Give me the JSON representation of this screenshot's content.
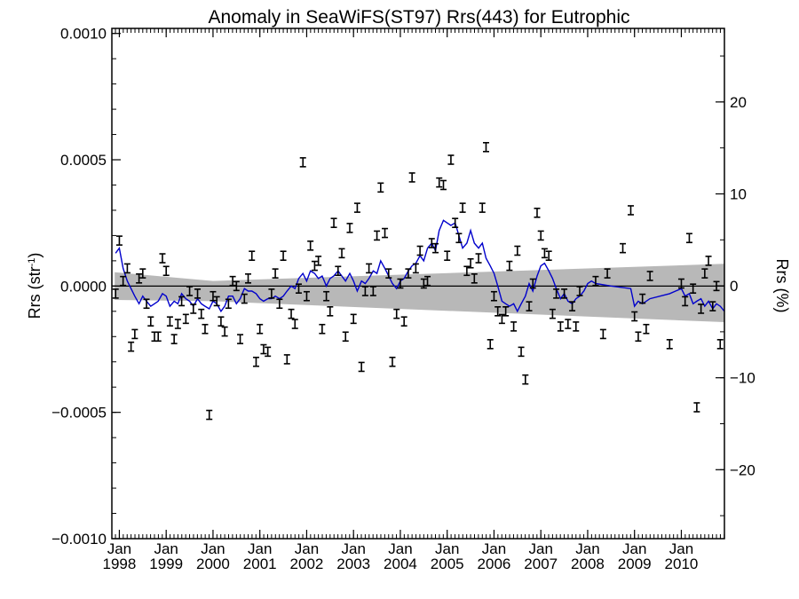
{
  "chart_data": {
    "type": "scatter",
    "title": "Anomaly in SeaWiFS(ST97) Rrs(443) for Eutrophic",
    "ylabel_left": "Rrs (str",
    "ylabel_left_sup": "-1",
    "ylabel_left_end": ")",
    "ylabel_right": "Rrs (%)",
    "xlim": [
      1997.84,
      2010.92
    ],
    "ylim_left": [
      -0.001,
      0.00102
    ],
    "ylim_right": [
      -27.5,
      28.0
    ],
    "x_ticks": [
      {
        "v": 1998,
        "l1": "Jan",
        "l2": "1998"
      },
      {
        "v": 1999,
        "l1": "Jan",
        "l2": "1999"
      },
      {
        "v": 2000,
        "l1": "Jan",
        "l2": "2000"
      },
      {
        "v": 2001,
        "l1": "Jan",
        "l2": "2001"
      },
      {
        "v": 2002,
        "l1": "Jan",
        "l2": "2002"
      },
      {
        "v": 2003,
        "l1": "Jan",
        "l2": "2003"
      },
      {
        "v": 2004,
        "l1": "Jan",
        "l2": "2004"
      },
      {
        "v": 2005,
        "l1": "Jan",
        "l2": "2005"
      },
      {
        "v": 2006,
        "l1": "Jan",
        "l2": "2006"
      },
      {
        "v": 2007,
        "l1": "Jan",
        "l2": "2007"
      },
      {
        "v": 2008,
        "l1": "Jan",
        "l2": "2008"
      },
      {
        "v": 2009,
        "l1": "Jan",
        "l2": "2009"
      },
      {
        "v": 2010,
        "l1": "Jan",
        "l2": "2010"
      }
    ],
    "y_ticks_left": [
      {
        "v": 0.001,
        "l": "0.0010"
      },
      {
        "v": 0.0005,
        "l": "0.0005"
      },
      {
        "v": 0.0,
        "l": "0.0000"
      },
      {
        "v": -0.0005,
        "l": "−0.0005"
      },
      {
        "v": -0.001,
        "l": "−0.0010"
      }
    ],
    "y_ticks_right": [
      {
        "v": 20,
        "l": "20"
      },
      {
        "v": 10,
        "l": "10"
      },
      {
        "v": 0,
        "l": "0"
      },
      {
        "v": -10,
        "l": "−10"
      },
      {
        "v": -20,
        "l": "−20"
      }
    ],
    "band": {
      "x": [
        1997.9,
        2000.0,
        2010.92
      ],
      "upper": [
        5.5e-05,
        2e-05,
        8.8e-05
      ],
      "lower": [
        -5.5e-05,
        -6e-05,
        -0.000143
      ]
    },
    "points": [
      {
        "x": 1997.92,
        "y": -3e-05
      },
      {
        "x": 1998.0,
        "y": 0.00018
      },
      {
        "x": 1998.08,
        "y": 2e-05
      },
      {
        "x": 1998.17,
        "y": 7e-05
      },
      {
        "x": 1998.25,
        "y": -0.00024
      },
      {
        "x": 1998.33,
        "y": -0.00019
      },
      {
        "x": 1998.42,
        "y": 3e-05
      },
      {
        "x": 1998.5,
        "y": 5e-05
      },
      {
        "x": 1998.58,
        "y": -7e-05
      },
      {
        "x": 1998.67,
        "y": -0.00014
      },
      {
        "x": 1998.75,
        "y": -0.0002
      },
      {
        "x": 1998.83,
        "y": -0.0002
      },
      {
        "x": 1998.92,
        "y": 0.00011
      },
      {
        "x": 1999.0,
        "y": 6e-05
      },
      {
        "x": 1999.08,
        "y": -0.00014
      },
      {
        "x": 1999.17,
        "y": -0.00021
      },
      {
        "x": 1999.25,
        "y": -0.00015
      },
      {
        "x": 1999.33,
        "y": -6e-05
      },
      {
        "x": 1999.42,
        "y": -0.00013
      },
      {
        "x": 1999.5,
        "y": -2e-05
      },
      {
        "x": 1999.58,
        "y": -9e-05
      },
      {
        "x": 1999.67,
        "y": -3e-05
      },
      {
        "x": 1999.75,
        "y": -0.00011
      },
      {
        "x": 1999.83,
        "y": -0.00017
      },
      {
        "x": 1999.92,
        "y": -0.00051
      },
      {
        "x": 2000.0,
        "y": -4e-05
      },
      {
        "x": 2000.08,
        "y": -6e-05
      },
      {
        "x": 2000.17,
        "y": -0.00014
      },
      {
        "x": 2000.25,
        "y": -0.00018
      },
      {
        "x": 2000.33,
        "y": -7e-05
      },
      {
        "x": 2000.42,
        "y": 2e-05
      },
      {
        "x": 2000.5,
        "y": 0.0
      },
      {
        "x": 2000.58,
        "y": -0.00021
      },
      {
        "x": 2000.67,
        "y": -5e-05
      },
      {
        "x": 2000.75,
        "y": 3e-05
      },
      {
        "x": 2000.83,
        "y": 0.00012
      },
      {
        "x": 2000.92,
        "y": -0.0003
      },
      {
        "x": 2001.0,
        "y": -0.00017
      },
      {
        "x": 2001.08,
        "y": -0.00025
      },
      {
        "x": 2001.17,
        "y": -0.00026
      },
      {
        "x": 2001.25,
        "y": -3e-05
      },
      {
        "x": 2001.33,
        "y": 5e-05
      },
      {
        "x": 2001.42,
        "y": -7e-05
      },
      {
        "x": 2001.5,
        "y": 0.00012
      },
      {
        "x": 2001.58,
        "y": -0.00029
      },
      {
        "x": 2001.67,
        "y": -0.00011
      },
      {
        "x": 2001.75,
        "y": -0.00015
      },
      {
        "x": 2001.83,
        "y": -1e-05
      },
      {
        "x": 2001.92,
        "y": 0.00049
      },
      {
        "x": 2002.0,
        "y": -4e-05
      },
      {
        "x": 2002.08,
        "y": 0.00016
      },
      {
        "x": 2002.17,
        "y": 8e-05
      },
      {
        "x": 2002.25,
        "y": 0.0001
      },
      {
        "x": 2002.33,
        "y": -0.00017
      },
      {
        "x": 2002.42,
        "y": -4e-05
      },
      {
        "x": 2002.5,
        "y": -0.0001
      },
      {
        "x": 2002.58,
        "y": 0.00025
      },
      {
        "x": 2002.67,
        "y": 6e-05
      },
      {
        "x": 2002.75,
        "y": 0.00013
      },
      {
        "x": 2002.83,
        "y": -0.0002
      },
      {
        "x": 2002.92,
        "y": 0.00023
      },
      {
        "x": 2003.0,
        "y": -0.00013
      },
      {
        "x": 2003.08,
        "y": 0.00031
      },
      {
        "x": 2003.17,
        "y": -0.00032
      },
      {
        "x": 2003.25,
        "y": -2e-05
      },
      {
        "x": 2003.33,
        "y": 7e-05
      },
      {
        "x": 2003.42,
        "y": -2e-05
      },
      {
        "x": 2003.5,
        "y": 0.0002
      },
      {
        "x": 2003.58,
        "y": 0.00039
      },
      {
        "x": 2003.67,
        "y": 0.00021
      },
      {
        "x": 2003.75,
        "y": 5e-05
      },
      {
        "x": 2003.83,
        "y": -0.0003
      },
      {
        "x": 2003.92,
        "y": -0.00011
      },
      {
        "x": 2004.0,
        "y": 1e-05
      },
      {
        "x": 2004.08,
        "y": -0.00014
      },
      {
        "x": 2004.17,
        "y": 5e-05
      },
      {
        "x": 2004.25,
        "y": 0.00043
      },
      {
        "x": 2004.33,
        "y": 7e-05
      },
      {
        "x": 2004.42,
        "y": 0.00014
      },
      {
        "x": 2004.5,
        "y": 1e-05
      },
      {
        "x": 2004.58,
        "y": 2e-05
      },
      {
        "x": 2004.67,
        "y": 0.00017
      },
      {
        "x": 2004.75,
        "y": 0.00015
      },
      {
        "x": 2004.83,
        "y": 0.00041
      },
      {
        "x": 2004.92,
        "y": 0.0004
      },
      {
        "x": 2005.0,
        "y": 0.00012
      },
      {
        "x": 2005.08,
        "y": 0.0005
      },
      {
        "x": 2005.17,
        "y": 0.00025
      },
      {
        "x": 2005.25,
        "y": 0.00019
      },
      {
        "x": 2005.33,
        "y": 0.00031
      },
      {
        "x": 2005.42,
        "y": 6e-05
      },
      {
        "x": 2005.5,
        "y": 9e-05
      },
      {
        "x": 2005.58,
        "y": 3e-05
      },
      {
        "x": 2005.67,
        "y": 0.00011
      },
      {
        "x": 2005.75,
        "y": 0.00031
      },
      {
        "x": 2005.83,
        "y": 0.00055
      },
      {
        "x": 2005.92,
        "y": -0.00023
      },
      {
        "x": 2006.0,
        "y": -4e-05
      },
      {
        "x": 2006.08,
        "y": -0.0001
      },
      {
        "x": 2006.17,
        "y": -0.00013
      },
      {
        "x": 2006.25,
        "y": -0.0001
      },
      {
        "x": 2006.33,
        "y": 8e-05
      },
      {
        "x": 2006.42,
        "y": -0.00016
      },
      {
        "x": 2006.5,
        "y": 0.00014
      },
      {
        "x": 2006.58,
        "y": -0.00026
      },
      {
        "x": 2006.67,
        "y": -0.00037
      },
      {
        "x": 2006.75,
        "y": -8e-05
      },
      {
        "x": 2006.83,
        "y": 1e-05
      },
      {
        "x": 2006.92,
        "y": 0.00029
      },
      {
        "x": 2007.0,
        "y": 0.0002
      },
      {
        "x": 2007.08,
        "y": 0.00013
      },
      {
        "x": 2007.17,
        "y": 0.00012
      },
      {
        "x": 2007.25,
        "y": -0.00011
      },
      {
        "x": 2007.33,
        "y": -3e-05
      },
      {
        "x": 2007.42,
        "y": -0.00016
      },
      {
        "x": 2007.5,
        "y": -3e-05
      },
      {
        "x": 2007.58,
        "y": -0.00015
      },
      {
        "x": 2007.67,
        "y": -8e-05
      },
      {
        "x": 2007.75,
        "y": -0.00016
      },
      {
        "x": 2007.83,
        "y": -2e-05
      },
      {
        "x": 2008.33,
        "y": -0.00019
      },
      {
        "x": 2008.17,
        "y": 2e-05
      },
      {
        "x": 2008.42,
        "y": 5e-05
      },
      {
        "x": 2008.75,
        "y": 0.00015
      },
      {
        "x": 2008.92,
        "y": 0.0003
      },
      {
        "x": 2009.0,
        "y": -0.00012
      },
      {
        "x": 2009.08,
        "y": -0.0002
      },
      {
        "x": 2009.17,
        "y": -5e-05
      },
      {
        "x": 2009.25,
        "y": -0.00017
      },
      {
        "x": 2009.33,
        "y": 4e-05
      },
      {
        "x": 2009.75,
        "y": -0.00023
      },
      {
        "x": 2010.0,
        "y": 1e-05
      },
      {
        "x": 2010.08,
        "y": -6e-05
      },
      {
        "x": 2010.17,
        "y": 0.00019
      },
      {
        "x": 2010.25,
        "y": -1e-05
      },
      {
        "x": 2010.33,
        "y": -0.00048
      },
      {
        "x": 2010.42,
        "y": -9e-05
      },
      {
        "x": 2010.5,
        "y": 5e-05
      },
      {
        "x": 2010.58,
        "y": 0.0001
      },
      {
        "x": 2010.67,
        "y": -8e-05
      },
      {
        "x": 2010.75,
        "y": 0.0
      },
      {
        "x": 2010.83,
        "y": -0.00023
      }
    ],
    "smooth": {
      "x": [
        1997.92,
        1998.0,
        1998.08,
        1998.17,
        1998.25,
        1998.33,
        1998.42,
        1998.5,
        1998.58,
        1998.67,
        1998.75,
        1998.83,
        1998.92,
        1999.0,
        1999.08,
        1999.17,
        1999.25,
        1999.33,
        1999.42,
        1999.5,
        1999.58,
        1999.67,
        1999.75,
        1999.83,
        1999.92,
        2000.0,
        2000.08,
        2000.17,
        2000.25,
        2000.33,
        2000.42,
        2000.5,
        2000.58,
        2000.67,
        2000.75,
        2000.83,
        2000.92,
        2001.0,
        2001.08,
        2001.17,
        2001.25,
        2001.33,
        2001.42,
        2001.5,
        2001.58,
        2001.67,
        2001.75,
        2001.83,
        2001.92,
        2002.0,
        2002.08,
        2002.17,
        2002.25,
        2002.33,
        2002.42,
        2002.5,
        2002.58,
        2002.67,
        2002.75,
        2002.83,
        2002.92,
        2003.0,
        2003.08,
        2003.17,
        2003.25,
        2003.33,
        2003.42,
        2003.5,
        2003.58,
        2003.67,
        2003.75,
        2003.83,
        2003.92,
        2004.0,
        2004.08,
        2004.17,
        2004.25,
        2004.33,
        2004.42,
        2004.5,
        2004.58,
        2004.67,
        2004.75,
        2004.83,
        2004.92,
        2005.0,
        2005.08,
        2005.17,
        2005.25,
        2005.33,
        2005.42,
        2005.5,
        2005.58,
        2005.67,
        2005.75,
        2005.83,
        2005.92,
        2006.0,
        2006.08,
        2006.17,
        2006.25,
        2006.33,
        2006.42,
        2006.5,
        2006.58,
        2006.67,
        2006.75,
        2006.83,
        2006.92,
        2007.0,
        2007.08,
        2007.17,
        2007.25,
        2007.33,
        2007.42,
        2007.5,
        2007.58,
        2007.67,
        2007.75,
        2007.83,
        2007.92,
        2008.0,
        2008.08,
        2008.17,
        2008.5,
        2008.92,
        2009.0,
        2009.08,
        2009.17,
        2009.33,
        2009.75,
        2010.0,
        2010.08,
        2010.17,
        2010.25,
        2010.33,
        2010.42,
        2010.5,
        2010.58,
        2010.67,
        2010.75,
        2010.83,
        2010.92
      ],
      "y": [
        0.00013,
        0.00015,
        7e-05,
        2e-05,
        -1e-05,
        -4e-05,
        -7e-05,
        -4e-05,
        -6e-05,
        -8e-05,
        -7e-05,
        -6e-05,
        -3e-05,
        -4e-05,
        -8e-05,
        -6e-05,
        -7e-05,
        -3e-05,
        -5e-05,
        -6e-05,
        -8e-05,
        -5e-05,
        -7e-05,
        -8e-05,
        -9e-05,
        -6e-05,
        -7e-05,
        -0.0001,
        -8e-05,
        -4e-05,
        -4e-05,
        -7e-05,
        -5e-05,
        -1e-05,
        -2e-05,
        -2e-05,
        -3e-05,
        -5e-05,
        -6e-05,
        -5e-05,
        -5e-05,
        -4e-05,
        -5e-05,
        -4e-05,
        -2e-05,
        0.0,
        -1e-05,
        3e-05,
        5e-05,
        2e-05,
        6e-05,
        5e-05,
        3e-05,
        4e-05,
        0.0,
        3e-05,
        4e-05,
        6e-05,
        4e-05,
        2e-05,
        5e-05,
        2e-05,
        -2e-05,
        2e-05,
        1e-05,
        3e-05,
        6e-05,
        5e-05,
        0.0001,
        7e-05,
        4e-05,
        1e-05,
        -1e-05,
        2e-05,
        3e-05,
        6e-05,
        8e-05,
        9e-05,
        0.00012,
        0.0001,
        0.00015,
        0.00017,
        0.00014,
        0.00022,
        0.00026,
        0.00025,
        0.00024,
        0.00025,
        0.0002,
        0.00015,
        0.00017,
        0.00022,
        0.00017,
        0.00015,
        0.00017,
        0.00011,
        8e-05,
        5e-05,
        0.0,
        -6e-05,
        -7e-05,
        -8e-05,
        -7e-05,
        -0.0001,
        -7e-05,
        -4e-05,
        1e-05,
        -2e-05,
        4e-05,
        8e-05,
        9e-05,
        6e-05,
        3e-05,
        -1e-05,
        -5e-05,
        -3e-05,
        -6e-05,
        -7e-05,
        -5e-05,
        -4e-05,
        -2e-05,
        1e-05,
        2e-05,
        1e-05,
        0.0,
        -1e-05,
        -8e-05,
        -6e-05,
        -7e-05,
        -5e-05,
        -3e-05,
        -1e-05,
        -4e-05,
        -3e-05,
        -7e-05,
        -6e-05,
        -5e-05,
        -8e-05,
        -6e-05,
        -9e-05,
        -7e-05,
        -8e-05,
        -0.0001
      ]
    },
    "colors": {
      "smooth_line": "#0000cc",
      "band": "#b8b8b8",
      "markers": "#000000",
      "zero_line": "#000000"
    }
  }
}
